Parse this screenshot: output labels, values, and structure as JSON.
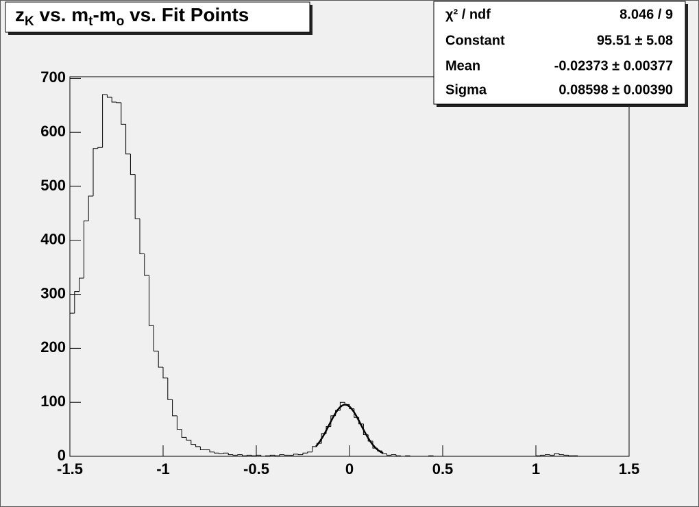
{
  "chart_data": {
    "type": "histogram",
    "title": [
      "z",
      "K",
      " vs. m",
      "t",
      "-m",
      "o",
      " vs. Fit Points"
    ],
    "bins": [
      -1.5,
      -1.475,
      -1.45,
      -1.425,
      -1.4,
      -1.375,
      -1.35,
      -1.325,
      -1.3,
      -1.275,
      -1.25,
      -1.225,
      -1.2,
      -1.175,
      -1.15,
      -1.125,
      -1.1,
      -1.075,
      -1.05,
      -1.025,
      -1,
      -0.975,
      -0.95,
      -0.925,
      -0.9,
      -0.875,
      -0.85,
      -0.825,
      -0.8,
      -0.775,
      -0.75,
      -0.725,
      -0.7,
      -0.675,
      -0.65,
      -0.625,
      -0.6,
      -0.575,
      -0.55,
      -0.525,
      -0.5,
      -0.475,
      -0.45,
      -0.425,
      -0.4,
      -0.375,
      -0.35,
      -0.325,
      -0.3,
      -0.275,
      -0.25,
      -0.225,
      -0.2,
      -0.175,
      -0.15,
      -0.125,
      -0.1,
      -0.075,
      -0.05,
      -0.025,
      0,
      0.025,
      0.05,
      0.075,
      0.1,
      0.125,
      0.15,
      0.175,
      0.2,
      0.225,
      0.25,
      0.275,
      0.3,
      0.325,
      0.35,
      0.375,
      0.4,
      0.425,
      0.45,
      0.475,
      0.5,
      0.525,
      0.55,
      0.575,
      0.6,
      0.625,
      0.65,
      0.675,
      0.7,
      0.725,
      0.75,
      0.775,
      0.8,
      0.825,
      0.85,
      0.875,
      0.9,
      0.925,
      0.95,
      0.975,
      1,
      1.025,
      1.05,
      1.075,
      1.1,
      1.125,
      1.15,
      1.175,
      1.2,
      1.225,
      1.25,
      1.275,
      1.3,
      1.325,
      1.35,
      1.375,
      1.4,
      1.425,
      1.45,
      1.475,
      1.5
    ],
    "values": [
      265,
      305,
      330,
      436,
      482,
      570,
      572,
      670,
      665,
      656,
      655,
      615,
      560,
      522,
      440,
      375,
      335,
      242,
      195,
      165,
      145,
      105,
      75,
      50,
      35,
      30,
      22,
      18,
      12,
      12,
      8,
      6,
      5,
      6,
      3,
      2,
      3,
      1,
      2,
      1,
      2,
      0,
      1,
      2,
      1,
      3,
      2,
      2,
      4,
      3,
      6,
      8,
      18,
      24,
      42,
      55,
      75,
      85,
      100,
      96,
      88,
      72,
      60,
      40,
      28,
      15,
      10,
      5,
      2,
      3,
      1,
      0,
      1,
      0,
      0,
      0,
      0,
      1,
      0,
      0,
      0,
      0,
      0,
      0,
      0,
      0,
      0,
      0,
      0,
      0,
      0,
      0,
      0,
      0,
      0,
      0,
      0,
      0,
      0,
      0,
      1,
      2,
      3,
      2,
      5,
      3,
      2,
      1,
      1,
      0,
      0,
      0,
      0,
      0,
      0,
      0,
      0,
      0,
      0,
      0
    ],
    "color": "#000000",
    "fit": {
      "constant": 95.51,
      "mean": -0.02373,
      "sigma": 0.08598,
      "xrange": [
        -0.18,
        0.18
      ]
    },
    "stats": [
      {
        "name": "χ² / ndf",
        "value": "8.046 / 9"
      },
      {
        "name": "Constant",
        "value": "95.51 ± 5.08"
      },
      {
        "name": "Mean",
        "value": "-0.02373 ± 0.00377"
      },
      {
        "name": "Sigma",
        "value": "0.08598 ± 0.00390"
      }
    ],
    "xlim": [
      -1.5,
      1.5
    ],
    "ylim": [
      0,
      703
    ],
    "xticks": [
      -1.5,
      -1,
      -0.5,
      0,
      0.5,
      1,
      1.5
    ],
    "yticks": [
      0,
      100,
      200,
      300,
      400,
      500,
      600,
      700
    ]
  }
}
